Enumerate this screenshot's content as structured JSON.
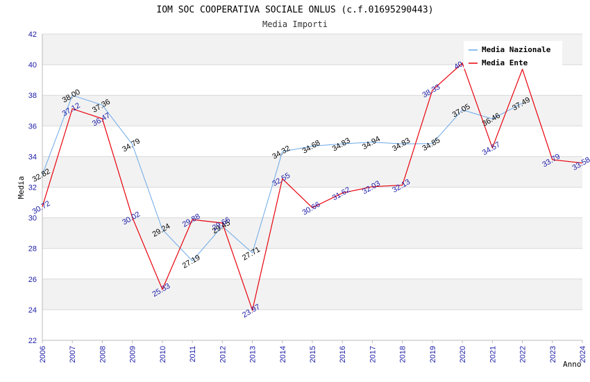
{
  "chart_data": {
    "type": "line",
    "title": "IOM SOC COOPERATIVA SOCIALE ONLUS (c.f.01695290443)",
    "subtitle": "Media Importi",
    "xlabel": "Anno",
    "ylabel": "Media",
    "ylim": [
      22,
      42
    ],
    "yticks": [
      "22",
      "24",
      "26",
      "28",
      "30",
      "32",
      "34",
      "36",
      "38",
      "40",
      "42"
    ],
    "categories": [
      "2006",
      "2007",
      "2008",
      "2009",
      "2010",
      "2011",
      "2012",
      "2013",
      "2014",
      "2015",
      "2016",
      "2017",
      "2018",
      "2019",
      "2020",
      "2021",
      "2022",
      "2023",
      "2024"
    ],
    "legend_position": "top-right",
    "series": [
      {
        "name": "Media Nazionale",
        "color": "#6aa8e8",
        "values": [
          32.82,
          38.0,
          37.36,
          34.79,
          29.24,
          27.19,
          29.45,
          27.71,
          34.32,
          34.68,
          34.83,
          34.94,
          34.83,
          34.85,
          37.05,
          36.46,
          37.49,
          null,
          null
        ],
        "labels": [
          "32.82",
          "38.00",
          "37.36",
          "34.79",
          "29.24",
          "27.19",
          "29.45",
          "27.71",
          "34.32",
          "34.68",
          "34.83",
          "34.94",
          "34.83",
          "34.85",
          "37.05",
          "36.46",
          "37.49",
          "",
          ""
        ]
      },
      {
        "name": "Media Ente",
        "color": "#e8000b",
        "values": [
          30.72,
          37.12,
          36.47,
          30.02,
          25.33,
          29.88,
          29.66,
          23.97,
          32.55,
          30.66,
          31.62,
          32.03,
          32.13,
          38.33,
          40.1,
          34.57,
          39.7,
          33.79,
          33.58
        ],
        "labels": [
          "30.72",
          "37.12",
          "36.47",
          "30.02",
          "25.33",
          "29.88",
          "29.66",
          "23.97",
          "32.55",
          "30.66",
          "31.62",
          "32.03",
          "32.13",
          "38.33",
          "40.1",
          "34.57",
          "",
          "33.79",
          "33.58"
        ]
      }
    ]
  }
}
